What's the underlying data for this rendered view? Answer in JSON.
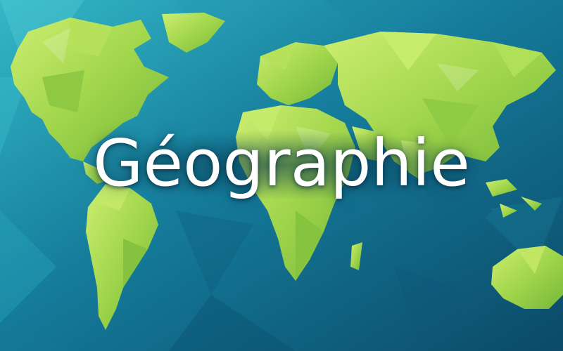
{
  "title": "Géographie",
  "colors": {
    "ocean_light": "#2fb3c4",
    "ocean_mid": "#137a99",
    "ocean_dark": "#0b4f6e",
    "land_light": "#c9ec6a",
    "land_mid": "#9bd24a",
    "land_dark": "#6fb33a",
    "text": "#ffffff"
  },
  "image": {
    "description_icon": "world-map-icon"
  }
}
